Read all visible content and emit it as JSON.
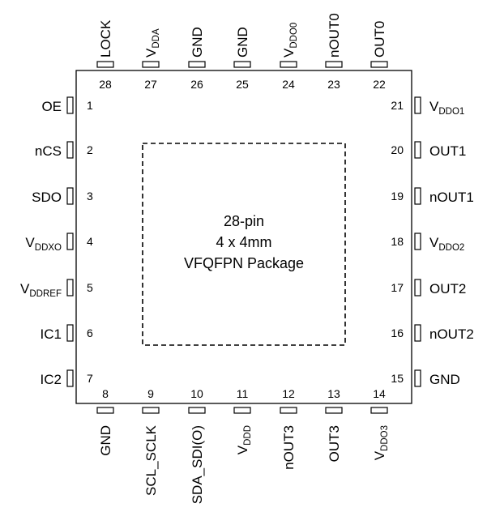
{
  "package": {
    "lines": [
      "28-pin",
      "4 x 4mm",
      "VFQFPN Package"
    ]
  },
  "pins": [
    {
      "num": "1",
      "side": "left",
      "name": "OE"
    },
    {
      "num": "2",
      "side": "left",
      "name": "nCS"
    },
    {
      "num": "3",
      "side": "left",
      "name": "SDO"
    },
    {
      "num": "4",
      "side": "left",
      "name": "V",
      "sub": "DDXO"
    },
    {
      "num": "5",
      "side": "left",
      "name": "V",
      "sub": "DDREF"
    },
    {
      "num": "6",
      "side": "left",
      "name": "IC1"
    },
    {
      "num": "7",
      "side": "left",
      "name": "IC2"
    },
    {
      "num": "8",
      "side": "bottom",
      "name": "GND"
    },
    {
      "num": "9",
      "side": "bottom",
      "name": "SCL_SCLK"
    },
    {
      "num": "10",
      "side": "bottom",
      "name": "SDA_SDI(O)"
    },
    {
      "num": "11",
      "side": "bottom",
      "name": "V",
      "sub": "DDD"
    },
    {
      "num": "12",
      "side": "bottom",
      "name": "nOUT3"
    },
    {
      "num": "13",
      "side": "bottom",
      "name": "OUT3"
    },
    {
      "num": "14",
      "side": "bottom",
      "name": "V",
      "sub": "DDO3"
    },
    {
      "num": "15",
      "side": "right",
      "name": "GND"
    },
    {
      "num": "16",
      "side": "right",
      "name": "nOUT2"
    },
    {
      "num": "17",
      "side": "right",
      "name": "OUT2"
    },
    {
      "num": "18",
      "side": "right",
      "name": "V",
      "sub": "DDO2"
    },
    {
      "num": "19",
      "side": "right",
      "name": "nOUT1"
    },
    {
      "num": "20",
      "side": "right",
      "name": "OUT1"
    },
    {
      "num": "21",
      "side": "right",
      "name": "V",
      "sub": "DDO1"
    },
    {
      "num": "22",
      "side": "top",
      "name": "OUT0"
    },
    {
      "num": "23",
      "side": "top",
      "name": "nOUT0"
    },
    {
      "num": "24",
      "side": "top",
      "name": "V",
      "sub": "DDO0"
    },
    {
      "num": "25",
      "side": "top",
      "name": "GND"
    },
    {
      "num": "26",
      "side": "top",
      "name": "GND"
    },
    {
      "num": "27",
      "side": "top",
      "name": "V",
      "sub": "DDA"
    },
    {
      "num": "28",
      "side": "top",
      "name": "LOCK"
    }
  ]
}
